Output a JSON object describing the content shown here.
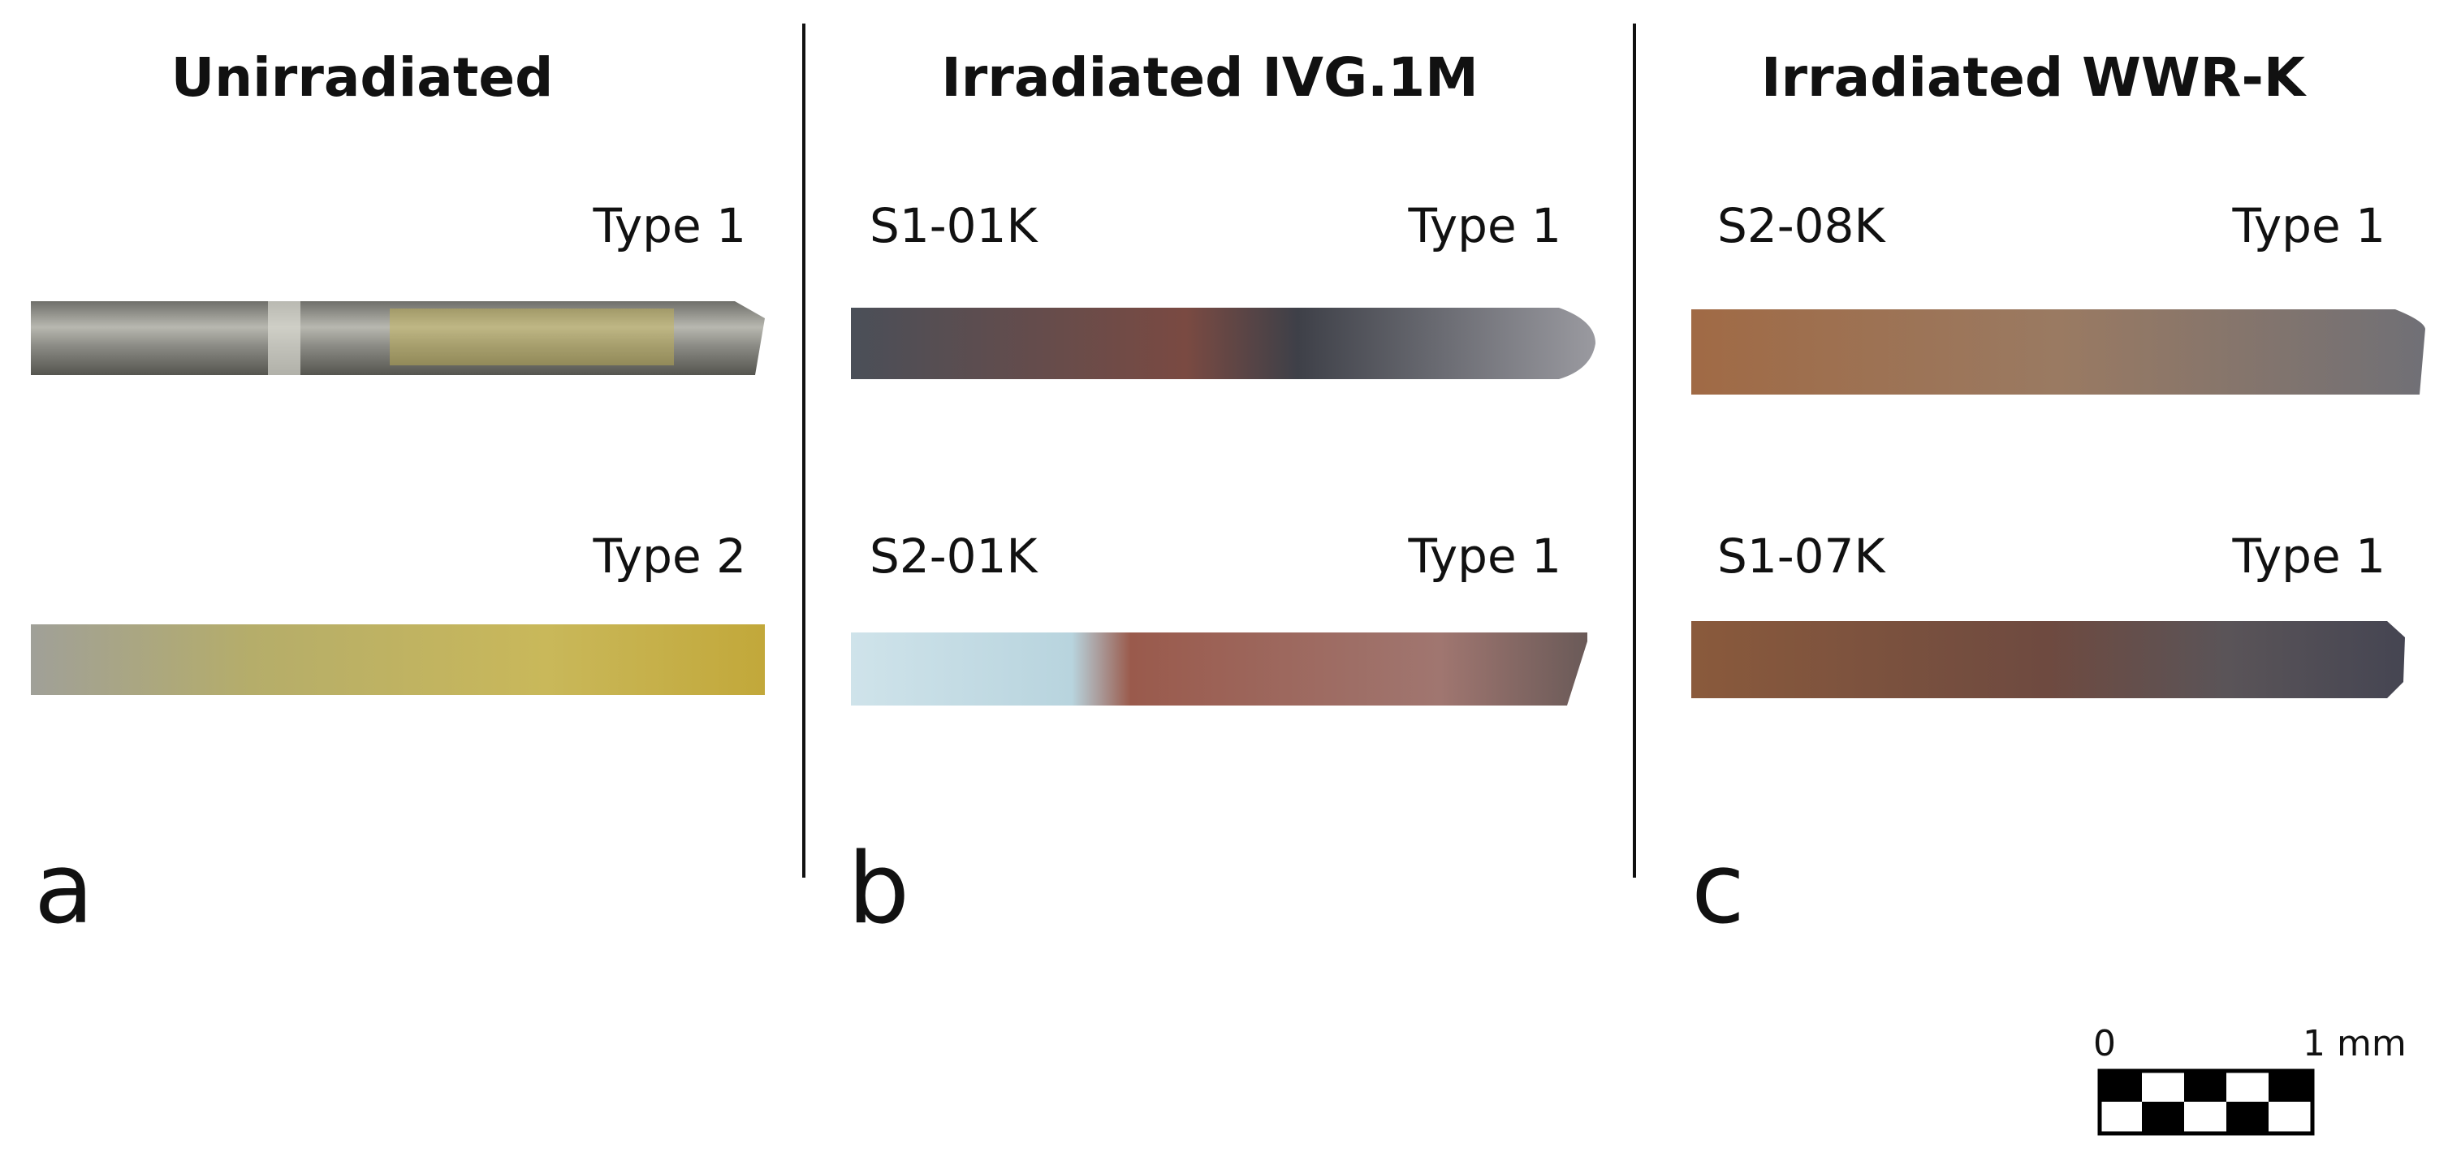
{
  "panels": [
    {
      "title": "Unirradiated",
      "letter": "a",
      "samples": [
        {
          "type": "Type 1"
        },
        {
          "type": "Type 2"
        }
      ]
    },
    {
      "title": "Irradiated IVG.1M",
      "letter": "b",
      "samples": [
        {
          "id": "S1-01K",
          "type": "Type 1"
        },
        {
          "id": "S2-01K",
          "type": "Type 1"
        }
      ]
    },
    {
      "title": "Irradiated WWR-K",
      "letter": "c",
      "samples": [
        {
          "id": "S2-08K",
          "type": "Type 1"
        },
        {
          "id": "S1-07K",
          "type": "Type 1"
        }
      ]
    }
  ],
  "scale_bar": {
    "start": "0",
    "end": "1 mm"
  }
}
